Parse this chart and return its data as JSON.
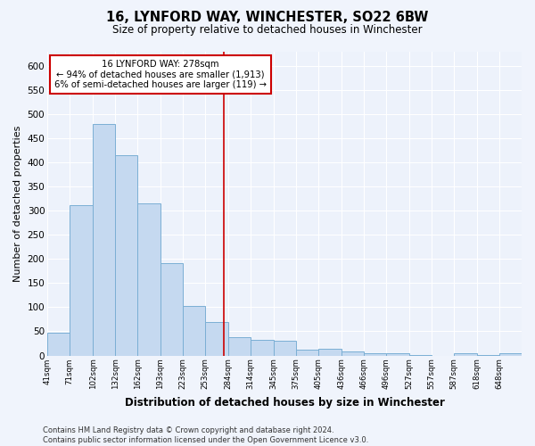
{
  "title": "16, LYNFORD WAY, WINCHESTER, SO22 6BW",
  "subtitle": "Size of property relative to detached houses in Winchester",
  "xlabel": "Distribution of detached houses by size in Winchester",
  "ylabel": "Number of detached properties",
  "bar_color": "#c5d9f0",
  "bar_edge_color": "#7bafd4",
  "background_color": "#edf2fb",
  "grid_color": "#ffffff",
  "annotation_box_color": "#cc0000",
  "marker_line_color": "#cc0000",
  "marker_value": 278,
  "annotation_line1": "16 LYNFORD WAY: 278sqm",
  "annotation_line2": "← 94% of detached houses are smaller (1,913)",
  "annotation_line3": "6% of semi-detached houses are larger (119) →",
  "footer_text": "Contains HM Land Registry data © Crown copyright and database right 2024.\nContains public sector information licensed under the Open Government Licence v3.0.",
  "categories": [
    "41sqm",
    "71sqm",
    "102sqm",
    "132sqm",
    "162sqm",
    "193sqm",
    "223sqm",
    "253sqm",
    "284sqm",
    "314sqm",
    "345sqm",
    "375sqm",
    "405sqm",
    "436sqm",
    "466sqm",
    "496sqm",
    "527sqm",
    "557sqm",
    "587sqm",
    "618sqm",
    "648sqm"
  ],
  "values": [
    47,
    312,
    480,
    415,
    315,
    192,
    103,
    70,
    38,
    33,
    30,
    12,
    13,
    9,
    5,
    4,
    1,
    0,
    5,
    1,
    4
  ],
  "bin_edges": [
    41,
    71,
    102,
    132,
    162,
    193,
    223,
    253,
    284,
    314,
    345,
    375,
    405,
    436,
    466,
    496,
    527,
    557,
    587,
    618,
    648,
    678
  ],
  "ylim": [
    0,
    630
  ],
  "yticks": [
    0,
    50,
    100,
    150,
    200,
    250,
    300,
    350,
    400,
    450,
    500,
    550,
    600
  ],
  "fig_width": 6.0,
  "fig_height": 5.0,
  "dpi": 100
}
